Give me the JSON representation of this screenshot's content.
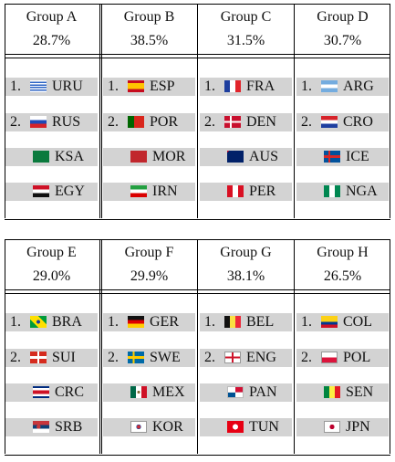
{
  "groups": [
    {
      "name": "Group A",
      "pct": "28.7%",
      "teams": [
        {
          "rank": "1.",
          "code": "URU",
          "flag": "uru"
        },
        {
          "rank": "2.",
          "code": "RUS",
          "flag": "rus"
        },
        {
          "rank": "",
          "code": "KSA",
          "flag": "ksa"
        },
        {
          "rank": "",
          "code": "EGY",
          "flag": "egy"
        }
      ]
    },
    {
      "name": "Group B",
      "pct": "38.5%",
      "teams": [
        {
          "rank": "1.",
          "code": "ESP",
          "flag": "esp"
        },
        {
          "rank": "2.",
          "code": "POR",
          "flag": "por"
        },
        {
          "rank": "",
          "code": "MOR",
          "flag": "mor"
        },
        {
          "rank": "",
          "code": "IRN",
          "flag": "irn"
        }
      ]
    },
    {
      "name": "Group C",
      "pct": "31.5%",
      "teams": [
        {
          "rank": "1.",
          "code": "FRA",
          "flag": "fra"
        },
        {
          "rank": "2.",
          "code": "DEN",
          "flag": "den"
        },
        {
          "rank": "",
          "code": "AUS",
          "flag": "aus"
        },
        {
          "rank": "",
          "code": "PER",
          "flag": "per"
        }
      ]
    },
    {
      "name": "Group D",
      "pct": "30.7%",
      "teams": [
        {
          "rank": "1.",
          "code": "ARG",
          "flag": "arg"
        },
        {
          "rank": "2.",
          "code": "CRO",
          "flag": "cro"
        },
        {
          "rank": "",
          "code": "ICE",
          "flag": "ice"
        },
        {
          "rank": "",
          "code": "NGA",
          "flag": "nga"
        }
      ]
    },
    {
      "name": "Group E",
      "pct": "29.0%",
      "teams": [
        {
          "rank": "1.",
          "code": "BRA",
          "flag": "bra"
        },
        {
          "rank": "2.",
          "code": "SUI",
          "flag": "sui"
        },
        {
          "rank": "",
          "code": "CRC",
          "flag": "crc"
        },
        {
          "rank": "",
          "code": "SRB",
          "flag": "srb"
        }
      ]
    },
    {
      "name": "Group F",
      "pct": "29.9%",
      "teams": [
        {
          "rank": "1.",
          "code": "GER",
          "flag": "ger"
        },
        {
          "rank": "2.",
          "code": "SWE",
          "flag": "swe"
        },
        {
          "rank": "",
          "code": "MEX",
          "flag": "mex"
        },
        {
          "rank": "",
          "code": "KOR",
          "flag": "kor"
        }
      ]
    },
    {
      "name": "Group G",
      "pct": "38.1%",
      "teams": [
        {
          "rank": "1.",
          "code": "BEL",
          "flag": "bel"
        },
        {
          "rank": "2.",
          "code": "ENG",
          "flag": "eng"
        },
        {
          "rank": "",
          "code": "PAN",
          "flag": "pan"
        },
        {
          "rank": "",
          "code": "TUN",
          "flag": "tun"
        }
      ]
    },
    {
      "name": "Group H",
      "pct": "26.5%",
      "teams": [
        {
          "rank": "1.",
          "code": "COL",
          "flag": "col"
        },
        {
          "rank": "2.",
          "code": "POL",
          "flag": "pol"
        },
        {
          "rank": "",
          "code": "SEN",
          "flag": "sen"
        },
        {
          "rank": "",
          "code": "JPN",
          "flag": "jpn"
        }
      ]
    }
  ]
}
